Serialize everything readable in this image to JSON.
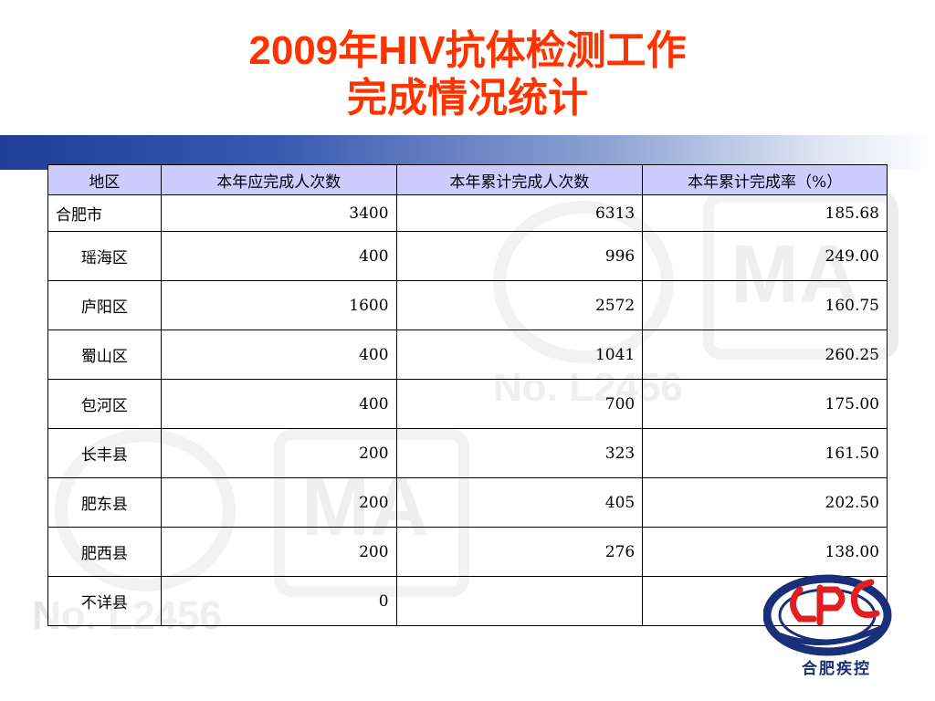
{
  "title": {
    "line1": "2009年HIV抗体检测工作",
    "line2": "完成情况统计"
  },
  "colors": {
    "title": "#ff3300",
    "header_bg": "#ccccff",
    "band_start": "#1f3d99",
    "logo_red": "#e02020",
    "logo_blue": "#1a2f7a"
  },
  "table": {
    "headers": [
      "地区",
      "本年应完成人次数",
      "本年累计完成人次数",
      "本年累计完成率（%）"
    ],
    "rows": [
      {
        "region": "合肥市",
        "target": "3400",
        "done": "6313",
        "rate": "185.68"
      },
      {
        "region": "瑶海区",
        "target": "400",
        "done": "996",
        "rate": "249.00"
      },
      {
        "region": "庐阳区",
        "target": "1600",
        "done": "2572",
        "rate": "160.75"
      },
      {
        "region": "蜀山区",
        "target": "400",
        "done": "1041",
        "rate": "260.25"
      },
      {
        "region": "包河区",
        "target": "400",
        "done": "700",
        "rate": "175.00"
      },
      {
        "region": "长丰县",
        "target": "200",
        "done": "323",
        "rate": "161.50"
      },
      {
        "region": "肥东县",
        "target": "200",
        "done": "405",
        "rate": "202.50"
      },
      {
        "region": "肥西县",
        "target": "200",
        "done": "276",
        "rate": "138.00"
      },
      {
        "region": "不详县",
        "target": "0",
        "done": "",
        "rate": ""
      }
    ]
  },
  "logo": {
    "caption": "合肥疾控",
    "mark": "CDC"
  },
  "watermark": {
    "cert1": "No. L2456",
    "cert2": "No. L2456",
    "cma": "MA"
  }
}
